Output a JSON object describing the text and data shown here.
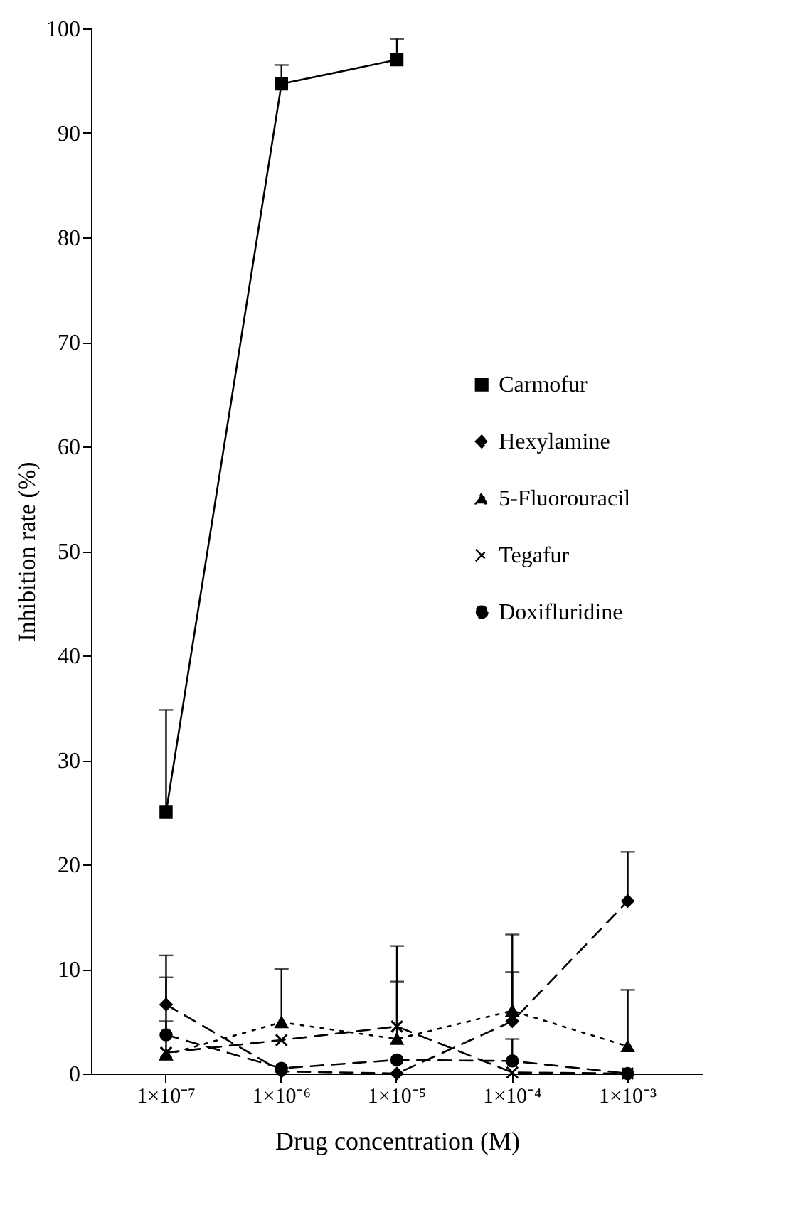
{
  "chart_data": {
    "type": "line",
    "xlabel": "Drug concentration (M)",
    "ylabel": "Inhibition rate (%)",
    "categories": [
      "1×10⁻⁷",
      "1×10⁻⁶",
      "1×10⁻⁵",
      "1×10⁻⁴",
      "1×10⁻³"
    ],
    "ylim": [
      0,
      100
    ],
    "yticks": [
      0,
      10,
      20,
      30,
      40,
      50,
      60,
      70,
      80,
      90,
      100
    ],
    "grid": false,
    "legend": "right",
    "series": [
      {
        "name": "Carmofur",
        "color": "#000000",
        "marker": "square",
        "line_style": "solid",
        "values": [
          25,
          94.7,
          97,
          null,
          null
        ],
        "errors": [
          [
            25,
            34.8
          ],
          [
            94.7,
            96.5
          ],
          [
            97,
            99
          ],
          null,
          null
        ]
      },
      {
        "name": "Hexylamine",
        "color": "#000000",
        "marker": "diamond",
        "line_style": "dashed",
        "values": [
          6.6,
          0.2,
          0,
          5.0,
          16.5
        ],
        "errors": [
          [
            6.6,
            11.3
          ],
          null,
          null,
          [
            5.0,
            13.3
          ],
          [
            16.5,
            21.2
          ]
        ]
      },
      {
        "name": "5-Fluorouracil",
        "color": "#000000",
        "marker": "triangle",
        "line_style": "dotted",
        "values": [
          1.8,
          4.9,
          3.3,
          6.0,
          2.6
        ],
        "errors": [
          null,
          [
            4.9,
            10
          ],
          [
            3.3,
            12.2
          ],
          [
            6.0,
            9.7
          ],
          [
            2.6,
            8.0
          ]
        ]
      },
      {
        "name": "Tegafur",
        "color": "#000000",
        "marker": "cross",
        "line_style": "dashed",
        "values": [
          2.0,
          3.2,
          4.5,
          0.1,
          0
        ],
        "errors": [
          [
            2.0,
            9.2
          ],
          null,
          [
            4.5,
            8.8
          ],
          null,
          null
        ]
      },
      {
        "name": "Doxifluridine",
        "color": "#000000",
        "marker": "circle",
        "line_style": "dashed",
        "values": [
          3.7,
          0.5,
          1.3,
          1.2,
          0
        ],
        "errors": [
          [
            3.7,
            5.0
          ],
          null,
          null,
          [
            1.2,
            3.3
          ],
          null
        ]
      }
    ]
  }
}
